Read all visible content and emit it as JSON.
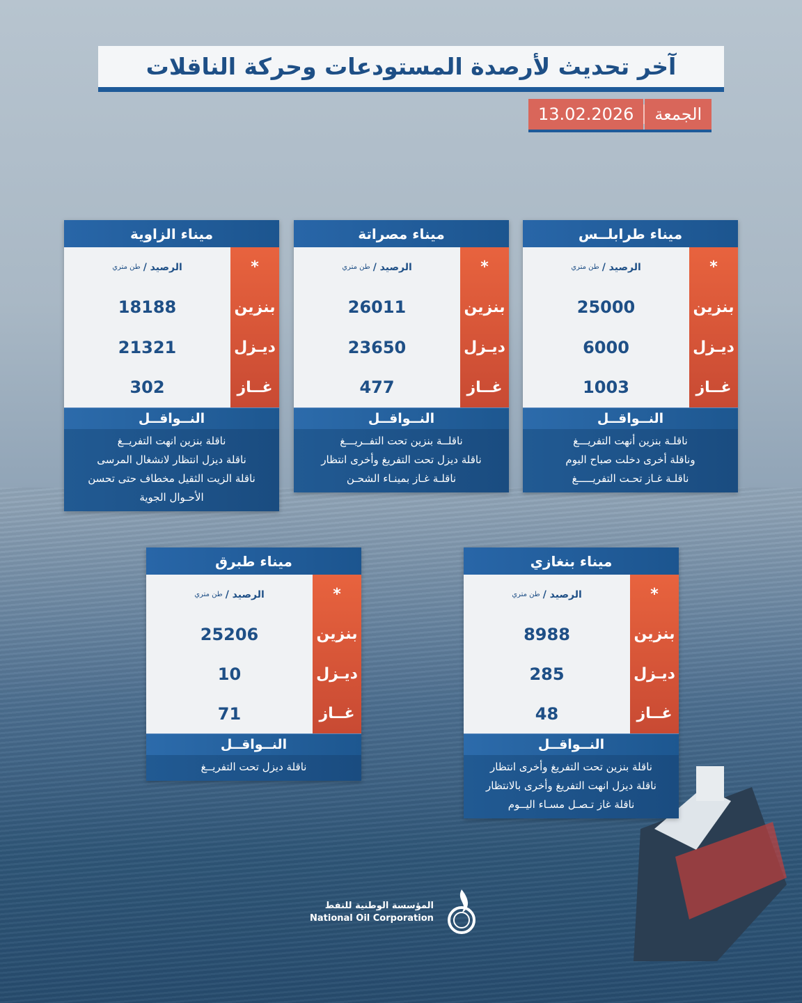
{
  "title": "آخر تحديث لأرصدة المستودعات وحركة الناقلات",
  "date": {
    "day": "الجمعة",
    "value": "13.02.2026"
  },
  "labels": {
    "star": "*",
    "balance": "الرصيد /",
    "unit": "طن متري",
    "gasoline": "بنزين",
    "diesel": "ديـزل",
    "gas": "غــاز",
    "tankers": "النــواقــل"
  },
  "ports": [
    {
      "name": "ميناء طرابلــس",
      "gasoline": "25000",
      "diesel": "6000",
      "gas": "1003",
      "notes": [
        "ناقلـة بنزين أنهت التفريـــغ",
        "وناقلة أخرى دخلت صباح اليوم",
        "ناقلـة غـاز تحـت التفريـــــغ"
      ]
    },
    {
      "name": "ميناء مصراتة",
      "gasoline": "26011",
      "diesel": "23650",
      "gas": "477",
      "notes": [
        "ناقلــة بنزين تحت التفــريـــغ",
        "ناقلة ديزل تحت التفريغ وأخرى انتظار",
        "ناقلـة غـاز بمينـاء الشحـن"
      ]
    },
    {
      "name": "ميناء الزاوية",
      "gasoline": "18188",
      "diesel": "21321",
      "gas": "302",
      "notes": [
        "ناقلة بنزين انهت التفريــغ",
        "ناقلة ديزل انتظار لانشغال المرسى",
        "ناقلة الزيت الثقيل مخطاف حتى تحسن",
        "الأحـوال الجوية"
      ]
    },
    {
      "name": "ميناء بنغازي",
      "gasoline": "8988",
      "diesel": "285",
      "gas": "48",
      "notes": [
        "ناقلة بنزين تحت التفريغ وأخرى انتظار",
        "ناقلة ديزل انهت التفريغ وأخرى بالانتظار",
        "ناقلة غاز تـصـل مسـاء اليــوم"
      ]
    },
    {
      "name": "ميناء طبرق",
      "gasoline": "25206",
      "diesel": "10",
      "gas": "71",
      "notes": [
        "ناقلة ديزل تحت التفريــغ"
      ]
    }
  ],
  "logo": {
    "ar": "المؤسسة الوطنية للنفط",
    "en": "National Oil Corporation"
  },
  "colors": {
    "blue": "#1e5a99",
    "red": "#d9665a"
  }
}
